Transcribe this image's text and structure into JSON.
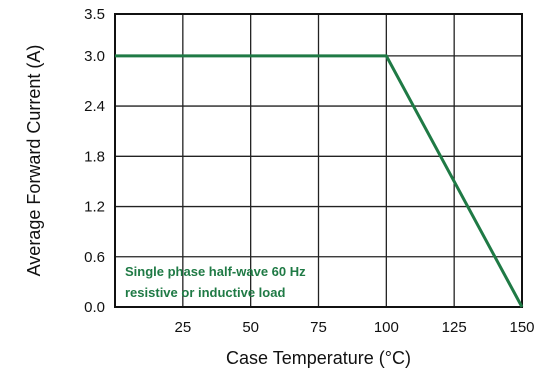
{
  "chart_data": {
    "type": "line",
    "xlabel": "Case Temperature (°C)",
    "ylabel": "Average Forward Current  (A)",
    "xlim": [
      0,
      150
    ],
    "ylim": [
      0,
      3.5
    ],
    "x_ticks": [
      "25",
      "50",
      "75",
      "100",
      "125",
      "150"
    ],
    "y_ticks": [
      "0.0",
      "0.6",
      "1.2",
      "1.8",
      "2.4",
      "3.0",
      "3.5"
    ],
    "grid": true,
    "annotation": [
      "Single phase half-wave 60 Hz",
      "resistive or inductive load"
    ],
    "series": [
      {
        "x": [
          0,
          100,
          150
        ],
        "y": [
          3.0,
          3.0,
          0.0
        ]
      }
    ],
    "colors": {
      "curve": "#1f7a45",
      "annotation": "#1f7a45"
    }
  }
}
